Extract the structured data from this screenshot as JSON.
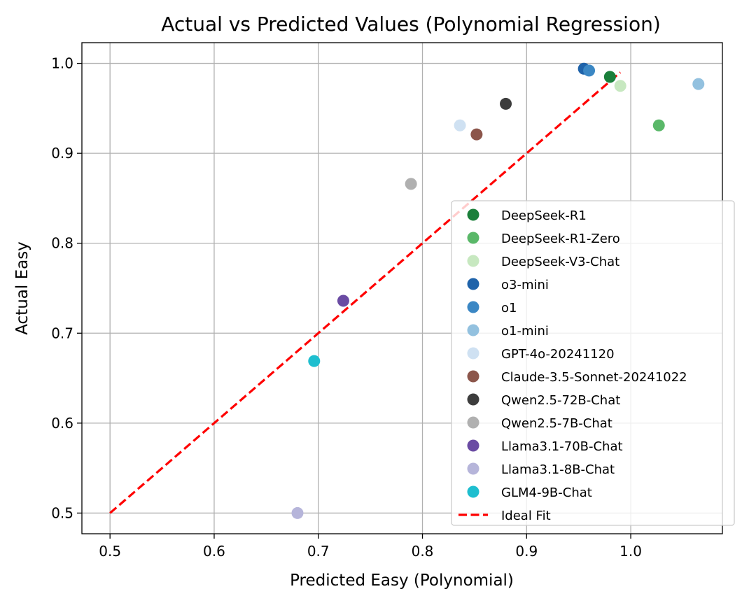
{
  "chart_data": {
    "type": "scatter",
    "title": "Actual vs Predicted Values (Polynomial Regression)",
    "xlabel": "Predicted Easy (Polynomial)",
    "ylabel": "Actual Easy",
    "xlim": [
      0.473,
      1.088
    ],
    "ylim": [
      0.477,
      1.023
    ],
    "xticks": [
      {
        "value": 0.5,
        "label": "0.5"
      },
      {
        "value": 0.6,
        "label": "0.6"
      },
      {
        "value": 0.7,
        "label": "0.7"
      },
      {
        "value": 0.8,
        "label": "0.8"
      },
      {
        "value": 0.9,
        "label": "0.9"
      },
      {
        "value": 1.0,
        "label": "1.0"
      }
    ],
    "yticks": [
      {
        "value": 0.5,
        "label": "0.5"
      },
      {
        "value": 0.6,
        "label": "0.6"
      },
      {
        "value": 0.7,
        "label": "0.7"
      },
      {
        "value": 0.8,
        "label": "0.8"
      },
      {
        "value": 0.9,
        "label": "0.9"
      },
      {
        "value": 1.0,
        "label": "1.0"
      }
    ],
    "grid": true,
    "legend_position": "lower-right",
    "series": [
      {
        "name": "DeepSeek-R1",
        "color": "#1a7f3a",
        "x": 0.98,
        "y": 0.985
      },
      {
        "name": "DeepSeek-R1-Zero",
        "color": "#5ab869",
        "x": 1.027,
        "y": 0.931
      },
      {
        "name": "DeepSeek-V3-Chat",
        "color": "#c7e8c0",
        "x": 0.99,
        "y": 0.975
      },
      {
        "name": "o3-mini",
        "color": "#1f63aa",
        "x": 0.955,
        "y": 0.994
      },
      {
        "name": "o1",
        "color": "#3b87c4",
        "x": 0.96,
        "y": 0.992
      },
      {
        "name": "o1-mini",
        "color": "#93c1df",
        "x": 1.065,
        "y": 0.977
      },
      {
        "name": "GPT-4o-20241120",
        "color": "#cfe1f2",
        "x": 0.836,
        "y": 0.931
      },
      {
        "name": "Claude-3.5-Sonnet-20241022",
        "color": "#8c564b",
        "x": 0.852,
        "y": 0.921
      },
      {
        "name": "Qwen2.5-72B-Chat",
        "color": "#3d3d3d",
        "x": 0.88,
        "y": 0.955
      },
      {
        "name": "Qwen2.5-7B-Chat",
        "color": "#b0b0b0",
        "x": 0.789,
        "y": 0.866
      },
      {
        "name": "Llama3.1-70B-Chat",
        "color": "#6a4ba3",
        "x": 0.724,
        "y": 0.736
      },
      {
        "name": "Llama3.1-8B-Chat",
        "color": "#b6b5da",
        "x": 0.68,
        "y": 0.5
      },
      {
        "name": "GLM4-9B-Chat",
        "color": "#1ebecf",
        "x": 0.696,
        "y": 0.669
      }
    ],
    "ideal_fit": {
      "name": "Ideal Fit",
      "color": "#ff0000",
      "x": [
        0.5,
        0.99
      ],
      "y": [
        0.5,
        0.99
      ]
    }
  }
}
